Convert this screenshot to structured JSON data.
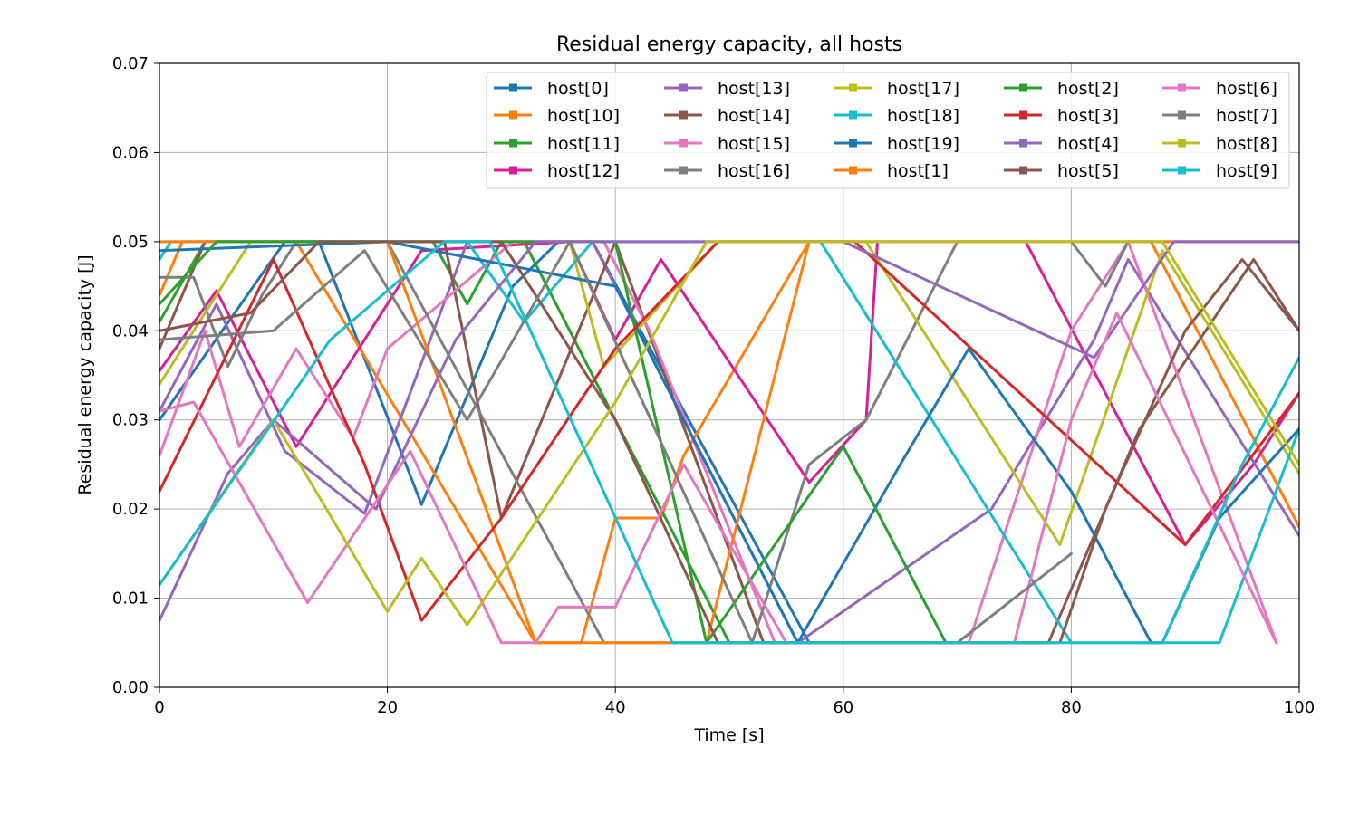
{
  "chart_data": {
    "type": "line",
    "title": "Residual energy capacity, all hosts",
    "xlabel": "Time [s]",
    "ylabel": "Residual energy capacity [J]",
    "xlim": [
      0,
      100
    ],
    "ylim": [
      0,
      0.07
    ],
    "xticks": [
      "0",
      "20",
      "40",
      "60",
      "80",
      "100"
    ],
    "yticks": [
      "0.00",
      "0.01",
      "0.02",
      "0.03",
      "0.04",
      "0.05",
      "0.06",
      "0.07"
    ],
    "grid": true,
    "legend": {
      "placement": "top-right",
      "columns": 5
    },
    "series": [
      {
        "name": "host[0]",
        "color": "#1f77b4",
        "points": [
          [
            0,
            0.03
          ],
          [
            11,
            0.05
          ],
          [
            14,
            0.05
          ],
          [
            23,
            0.0205
          ],
          [
            31,
            0.045
          ],
          [
            35,
            0.05
          ],
          [
            38,
            0.05
          ],
          [
            57,
            0.005
          ],
          [
            58,
            0.005
          ]
        ]
      },
      {
        "name": "host[10]",
        "color": "#ff7f0e",
        "points": [
          [
            0,
            0.044
          ],
          [
            2,
            0.05
          ],
          [
            12,
            0.05
          ],
          [
            33,
            0.005
          ],
          [
            37,
            0.005
          ],
          [
            40,
            0.019
          ],
          [
            44,
            0.019
          ],
          [
            46,
            0.026
          ],
          [
            57,
            0.05
          ],
          [
            87,
            0.05
          ],
          [
            100,
            0.018
          ]
        ]
      },
      {
        "name": "host[11]",
        "color": "#2ca02c",
        "points": [
          [
            0,
            0.041
          ],
          [
            4,
            0.05
          ],
          [
            24,
            0.05
          ],
          [
            27,
            0.043
          ],
          [
            30,
            0.05
          ],
          [
            32,
            0.05
          ],
          [
            50,
            0.005
          ]
        ]
      },
      {
        "name": "host[12]",
        "color": "#d62098",
        "points": [
          [
            0,
            0.0355
          ],
          [
            5,
            0.0445
          ],
          [
            12,
            0.027
          ],
          [
            19,
            0.041
          ],
          [
            23,
            0.049
          ],
          [
            36,
            0.05
          ],
          [
            40,
            0.039
          ],
          [
            44,
            0.048
          ],
          [
            57,
            0.023
          ],
          [
            62,
            0.03
          ],
          [
            63,
            0.05
          ],
          [
            76,
            0.05
          ],
          [
            90,
            0.016
          ],
          [
            96,
            0.025
          ],
          [
            100,
            0.033
          ]
        ]
      },
      {
        "name": "host[13]",
        "color": "#9467bd",
        "points": [
          [
            0,
            0.031
          ],
          [
            5,
            0.043
          ],
          [
            11,
            0.0265
          ],
          [
            18,
            0.0195
          ],
          [
            27,
            0.05
          ],
          [
            38,
            0.05
          ],
          [
            56,
            0.005
          ],
          [
            73,
            0.02
          ],
          [
            82,
            0.039
          ],
          [
            85,
            0.048
          ],
          [
            100,
            0.017
          ]
        ]
      },
      {
        "name": "host[14]",
        "color": "#8c564b",
        "points": [
          [
            0,
            0.038
          ],
          [
            4,
            0.05
          ],
          [
            25,
            0.05
          ],
          [
            30,
            0.019
          ],
          [
            40,
            0.05
          ],
          [
            53,
            0.005
          ],
          [
            78,
            0.005
          ],
          [
            86,
            0.029
          ],
          [
            96,
            0.048
          ],
          [
            100,
            0.04
          ]
        ]
      },
      {
        "name": "host[15]",
        "color": "#e377c2",
        "points": [
          [
            0,
            0.026
          ],
          [
            4,
            0.04
          ],
          [
            7,
            0.027
          ],
          [
            12,
            0.038
          ],
          [
            17,
            0.028
          ],
          [
            20,
            0.038
          ],
          [
            31,
            0.05
          ],
          [
            39,
            0.05
          ],
          [
            43,
            0.04
          ],
          [
            54,
            0.005
          ],
          [
            71,
            0.005
          ],
          [
            80,
            0.04
          ],
          [
            85,
            0.05
          ],
          [
            98,
            0.005
          ]
        ]
      },
      {
        "name": "host[16]",
        "color": "#7f7f7f",
        "points": [
          [
            0,
            0.046
          ],
          [
            3,
            0.046
          ],
          [
            6,
            0.036
          ],
          [
            9,
            0.044
          ],
          [
            12,
            0.05
          ],
          [
            20,
            0.05
          ],
          [
            39,
            0.005
          ],
          [
            52,
            0.005
          ],
          [
            57,
            0.025
          ],
          [
            62,
            0.03
          ],
          [
            70,
            0.05
          ],
          [
            80,
            0.05
          ],
          [
            83,
            0.045
          ],
          [
            85,
            0.05
          ],
          [
            100,
            0.05
          ]
        ]
      },
      {
        "name": "host[17]",
        "color": "#bcbd22",
        "points": [
          [
            0,
            0.034
          ],
          [
            8,
            0.05
          ],
          [
            28,
            0.05
          ],
          [
            36,
            0.05
          ],
          [
            39,
            0.036
          ],
          [
            49,
            0.05
          ],
          [
            62,
            0.05
          ],
          [
            79,
            0.016
          ],
          [
            88,
            0.049
          ],
          [
            100,
            0.024
          ]
        ]
      },
      {
        "name": "host[18]",
        "color": "#17becf",
        "points": [
          [
            0,
            0.048
          ],
          [
            1,
            0.05
          ],
          [
            27,
            0.05
          ],
          [
            32,
            0.041
          ],
          [
            38,
            0.05
          ],
          [
            58,
            0.05
          ],
          [
            80,
            0.005
          ],
          [
            93,
            0.005
          ],
          [
            100,
            0.029
          ]
        ]
      },
      {
        "name": "host[19]",
        "color": "#1f77b4",
        "points": [
          [
            0,
            0.049
          ],
          [
            20,
            0.05
          ],
          [
            40,
            0.045
          ],
          [
            56,
            0.005
          ],
          [
            65,
            0.025
          ],
          [
            71,
            0.038
          ],
          [
            80,
            0.022
          ],
          [
            87,
            0.005
          ],
          [
            88,
            0.005
          ],
          [
            93,
            0.019
          ],
          [
            100,
            0.029
          ]
        ]
      },
      {
        "name": "host[1]",
        "color": "#ff7f0e",
        "points": [
          [
            0,
            0.05
          ],
          [
            10,
            0.05
          ],
          [
            20,
            0.05
          ],
          [
            33,
            0.005
          ],
          [
            48,
            0.005
          ],
          [
            57,
            0.05
          ],
          [
            100,
            0.05
          ]
        ]
      },
      {
        "name": "host[2]",
        "color": "#2ca02c",
        "points": [
          [
            0,
            0.043
          ],
          [
            5,
            0.05
          ],
          [
            40,
            0.05
          ],
          [
            48,
            0.005
          ],
          [
            60,
            0.027
          ],
          [
            69,
            0.005
          ]
        ]
      },
      {
        "name": "host[3]",
        "color": "#d62728",
        "points": [
          [
            0,
            0.022
          ],
          [
            10,
            0.048
          ],
          [
            18,
            0.025
          ],
          [
            23,
            0.0075
          ],
          [
            30,
            0.019
          ],
          [
            40,
            0.038
          ],
          [
            49,
            0.05
          ],
          [
            61,
            0.05
          ],
          [
            90,
            0.016
          ],
          [
            100,
            0.033
          ]
        ]
      },
      {
        "name": "host[4]",
        "color": "#9467bd",
        "points": [
          [
            0,
            0.0075
          ],
          [
            6,
            0.024
          ],
          [
            10,
            0.03
          ],
          [
            19,
            0.02
          ],
          [
            26,
            0.039
          ],
          [
            33,
            0.05
          ],
          [
            60,
            0.05
          ],
          [
            82,
            0.037
          ],
          [
            89,
            0.05
          ],
          [
            100,
            0.05
          ]
        ]
      },
      {
        "name": "host[5]",
        "color": "#8c564b",
        "points": [
          [
            0,
            0.04
          ],
          [
            8,
            0.042
          ],
          [
            14,
            0.05
          ],
          [
            30,
            0.05
          ],
          [
            40,
            0.03
          ],
          [
            49,
            0.005
          ],
          [
            60,
            0.005
          ],
          [
            79,
            0.005
          ],
          [
            83,
            0.02
          ],
          [
            90,
            0.04
          ],
          [
            95,
            0.048
          ],
          [
            100,
            0.04
          ]
        ]
      },
      {
        "name": "host[6]",
        "color": "#e377c2",
        "points": [
          [
            0,
            0.031
          ],
          [
            3,
            0.032
          ],
          [
            13,
            0.0095
          ],
          [
            22,
            0.0265
          ],
          [
            30,
            0.005
          ],
          [
            33,
            0.005
          ],
          [
            35,
            0.009
          ],
          [
            40,
            0.009
          ],
          [
            46,
            0.025
          ],
          [
            55,
            0.005
          ],
          [
            75,
            0.005
          ],
          [
            80,
            0.03
          ],
          [
            84,
            0.042
          ],
          [
            98,
            0.005
          ]
        ]
      },
      {
        "name": "host[7]",
        "color": "#7f7f7f",
        "points": [
          [
            0,
            0.039
          ],
          [
            10,
            0.04
          ],
          [
            18,
            0.049
          ],
          [
            27,
            0.03
          ],
          [
            36,
            0.05
          ],
          [
            52,
            0.005
          ],
          [
            70,
            0.005
          ],
          [
            80,
            0.015
          ]
        ]
      },
      {
        "name": "host[8]",
        "color": "#bcbd22",
        "points": [
          [
            0,
            0.0115
          ],
          [
            10,
            0.03
          ],
          [
            20,
            0.0085
          ],
          [
            23,
            0.0145
          ],
          [
            27,
            0.007
          ],
          [
            40,
            0.032
          ],
          [
            48,
            0.05
          ],
          [
            88,
            0.05
          ],
          [
            100,
            0.025
          ]
        ]
      },
      {
        "name": "host[9]",
        "color": "#17becf",
        "points": [
          [
            0,
            0.0115
          ],
          [
            15,
            0.039
          ],
          [
            25,
            0.05
          ],
          [
            29,
            0.05
          ],
          [
            45,
            0.005
          ],
          [
            88,
            0.005
          ],
          [
            95,
            0.025
          ],
          [
            100,
            0.037
          ]
        ]
      }
    ]
  }
}
